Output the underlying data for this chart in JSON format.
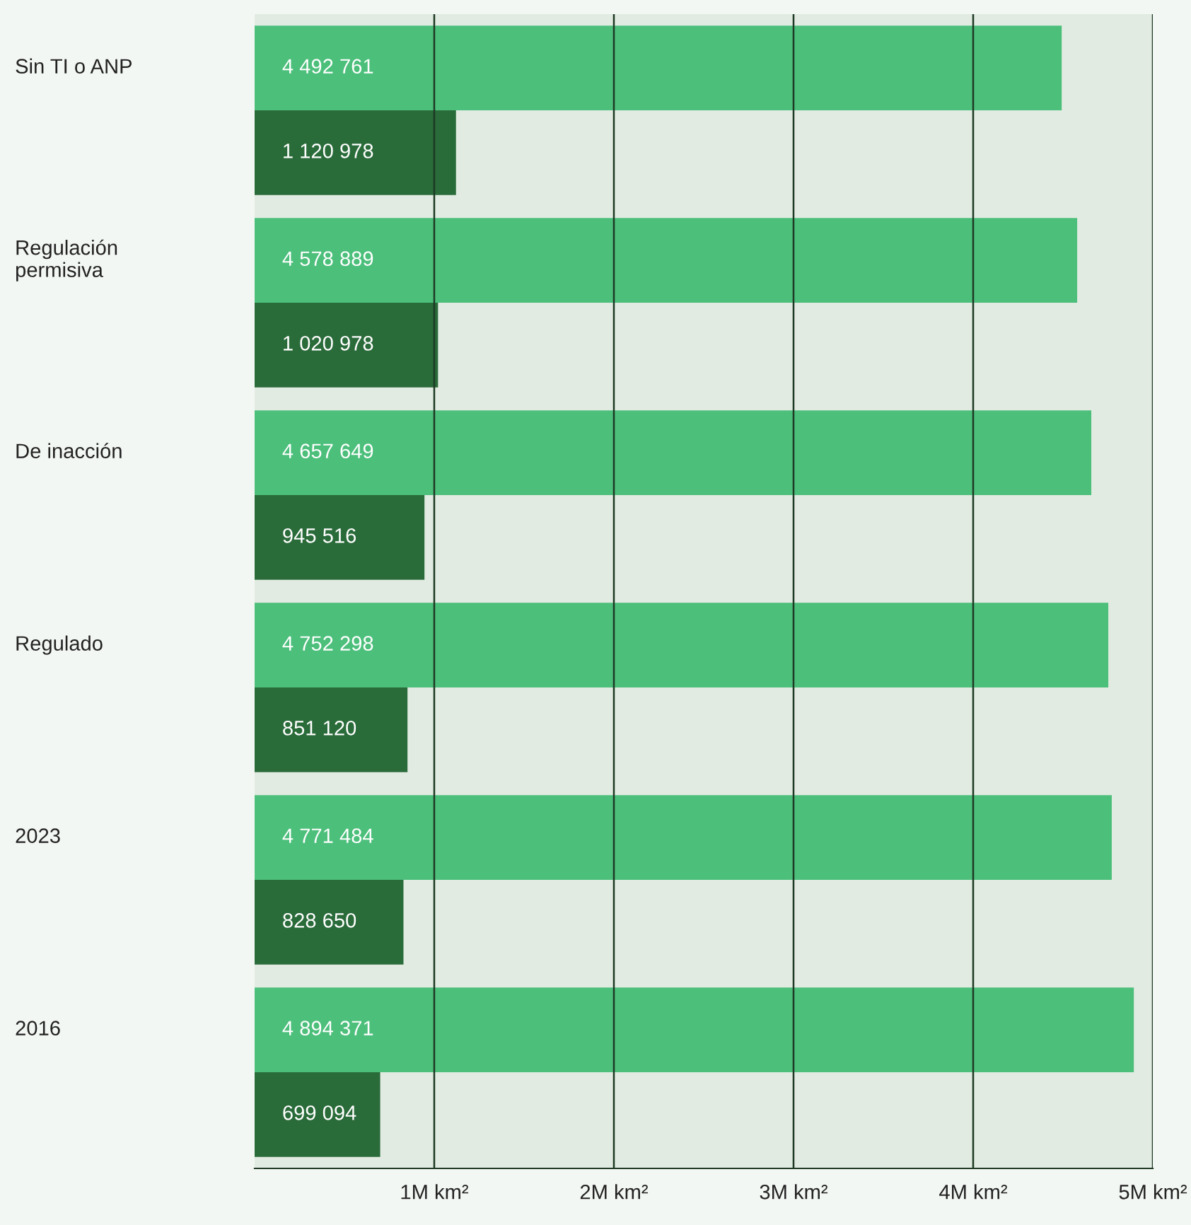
{
  "chart_data": {
    "type": "bar",
    "orientation": "horizontal",
    "categories": [
      "Sin TI o ANP",
      "Regulación permisiva",
      "De inacción",
      "Regulado",
      "2023",
      "2016"
    ],
    "series": [
      {
        "color": "#4cbf7b",
        "values": [
          4492761,
          4578889,
          4657649,
          4752298,
          4771484,
          4894371
        ],
        "value_labels": [
          "4 492 761",
          "4 578 889",
          "4 657 649",
          "4 752 298",
          "4 771 484",
          "4 894 371"
        ]
      },
      {
        "color": "#2a6b3a",
        "values": [
          1120978,
          1020978,
          945516,
          851120,
          828650,
          699094
        ],
        "value_labels": [
          "1 120 978",
          "1 020 978",
          "945 516",
          "851 120",
          "828 650",
          "699 094"
        ]
      }
    ],
    "xlim": [
      0,
      5000000
    ],
    "xticks": [
      {
        "value": 1000000,
        "label": "1M km²"
      },
      {
        "value": 2000000,
        "label": "2M km²"
      },
      {
        "value": 3000000,
        "label": "3M km²"
      },
      {
        "value": 4000000,
        "label": "4M km²"
      },
      {
        "value": 5000000,
        "label": "5M km²"
      }
    ],
    "grid": "x",
    "legend": false
  }
}
